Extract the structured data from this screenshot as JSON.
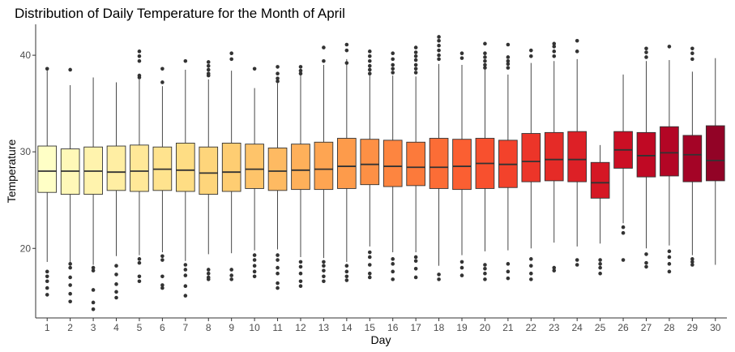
{
  "chart_data": {
    "type": "boxplot",
    "title": "Distribution of Daily Temperature for the Month of April",
    "xlabel": "Day",
    "ylabel": "Temperature",
    "ylim": [
      12.8,
      43.2
    ],
    "y_ticks": [
      20,
      30,
      40
    ],
    "grid": false,
    "legend": "none",
    "categories": [
      "1",
      "2",
      "3",
      "4",
      "5",
      "6",
      "7",
      "8",
      "9",
      "10",
      "11",
      "12",
      "13",
      "14",
      "15",
      "16",
      "17",
      "18",
      "19",
      "20",
      "21",
      "22",
      "23",
      "24",
      "25",
      "26",
      "27",
      "28",
      "29",
      "30"
    ],
    "boxes": [
      {
        "day": "1",
        "whisker_low": 18.6,
        "q1": 25.8,
        "median": 28.0,
        "q3": 30.6,
        "whisker_high": 38.4,
        "outliers": [
          38.6,
          17.6,
          17.1,
          16.6,
          15.9,
          15.2
        ],
        "color": "#ffffc6"
      },
      {
        "day": "2",
        "whisker_low": 18.6,
        "q1": 25.6,
        "median": 28.0,
        "q3": 30.3,
        "whisker_high": 36.9,
        "outliers": [
          38.5,
          18.4,
          18.0,
          17.0,
          16.2,
          15.3,
          14.5
        ],
        "color": "#fff8b8"
      },
      {
        "day": "3",
        "whisker_low": 18.3,
        "q1": 25.6,
        "median": 28.0,
        "q3": 30.5,
        "whisker_high": 37.7,
        "outliers": [
          18.0,
          17.7,
          15.7,
          14.4,
          13.7
        ],
        "color": "#fff3ad"
      },
      {
        "day": "4",
        "whisker_low": 19.2,
        "q1": 26.0,
        "median": 27.9,
        "q3": 30.6,
        "whisker_high": 37.2,
        "outliers": [
          18.2,
          17.3,
          16.3,
          15.5,
          14.9
        ],
        "color": "#ffeea3"
      },
      {
        "day": "5",
        "whisker_low": 19.3,
        "q1": 25.9,
        "median": 28.0,
        "q3": 30.7,
        "whisker_high": 37.5,
        "outliers": [
          40.4,
          39.9,
          39.4,
          37.9,
          37.7,
          18.9,
          18.5,
          17.1,
          16.6
        ],
        "color": "#ffe898"
      },
      {
        "day": "6",
        "whisker_low": 19.6,
        "q1": 26.0,
        "median": 28.2,
        "q3": 30.5,
        "whisker_high": 36.8,
        "outliers": [
          38.6,
          37.2,
          19.2,
          18.8,
          17.1,
          16.2,
          15.9
        ],
        "color": "#ffe38e"
      },
      {
        "day": "7",
        "whisker_low": 18.7,
        "q1": 25.9,
        "median": 28.1,
        "q3": 30.9,
        "whisker_high": 38.5,
        "outliers": [
          39.4,
          18.3,
          17.8,
          17.2,
          16.1,
          15.1
        ],
        "color": "#fedd84"
      },
      {
        "day": "8",
        "whisker_low": 19.4,
        "q1": 25.6,
        "median": 27.8,
        "q3": 30.5,
        "whisker_high": 37.5,
        "outliers": [
          39.3,
          38.9,
          38.5,
          38.1,
          37.9,
          17.8,
          17.4,
          17.0,
          16.8
        ],
        "color": "#fed57b"
      },
      {
        "day": "9",
        "whisker_low": 19.5,
        "q1": 25.9,
        "median": 27.9,
        "q3": 30.9,
        "whisker_high": 38.4,
        "outliers": [
          40.2,
          39.6,
          17.8,
          17.2,
          16.8
        ],
        "color": "#fecd72"
      },
      {
        "day": "10",
        "whisker_low": 19.8,
        "q1": 26.2,
        "median": 28.2,
        "q3": 30.8,
        "whisker_high": 36.6,
        "outliers": [
          38.6,
          19.3,
          18.8,
          18.2,
          17.6,
          17.1
        ],
        "color": "#fec46a"
      },
      {
        "day": "11",
        "whisker_low": 19.9,
        "q1": 26.0,
        "median": 28.0,
        "q3": 30.4,
        "whisker_high": 37.1,
        "outliers": [
          38.8,
          38.1,
          37.6,
          37.3,
          19.3,
          18.8,
          18.0,
          17.4,
          16.4,
          15.9
        ],
        "color": "#feba62"
      },
      {
        "day": "12",
        "whisker_low": 19.1,
        "q1": 26.1,
        "median": 28.1,
        "q3": 30.8,
        "whisker_high": 38.1,
        "outliers": [
          38.8,
          38.4,
          38.1,
          18.6,
          18.1,
          17.4,
          16.6,
          16.1
        ],
        "color": "#feb05a"
      },
      {
        "day": "13",
        "whisker_low": 19.0,
        "q1": 26.1,
        "median": 28.2,
        "q3": 31.0,
        "whisker_high": 39.0,
        "outliers": [
          40.8,
          39.4,
          18.6,
          18.2,
          17.7,
          17.1,
          16.6
        ],
        "color": "#fea552"
      },
      {
        "day": "14",
        "whisker_low": 18.6,
        "q1": 26.2,
        "median": 28.5,
        "q3": 31.4,
        "whisker_high": 39.6,
        "outliers": [
          41.1,
          40.5,
          39.2,
          18.2,
          17.6,
          17.1,
          16.7
        ],
        "color": "#fd9b4b"
      },
      {
        "day": "15",
        "whisker_low": 20.2,
        "q1": 26.6,
        "median": 28.7,
        "q3": 31.3,
        "whisker_high": 37.9,
        "outliers": [
          40.4,
          39.9,
          39.4,
          38.9,
          38.5,
          38.1,
          19.6,
          19.1,
          18.3,
          17.4,
          17.0
        ],
        "color": "#fd9045"
      },
      {
        "day": "16",
        "whisker_low": 19.6,
        "q1": 26.4,
        "median": 28.5,
        "q3": 31.2,
        "whisker_high": 37.9,
        "outliers": [
          40.2,
          39.6,
          39.0,
          38.6,
          38.2,
          18.9,
          18.4,
          17.6,
          16.8
        ],
        "color": "#fd8540"
      },
      {
        "day": "17",
        "whisker_low": 19.6,
        "q1": 26.5,
        "median": 28.4,
        "q3": 31.0,
        "whisker_high": 37.8,
        "outliers": [
          40.8,
          40.3,
          39.9,
          39.5,
          39.0,
          38.6,
          38.2,
          19.1,
          18.7,
          17.9,
          17.0
        ],
        "color": "#fc7a3b"
      },
      {
        "day": "18",
        "whisker_low": 18.2,
        "q1": 26.2,
        "median": 28.4,
        "q3": 31.4,
        "whisker_high": 39.1,
        "outliers": [
          41.9,
          41.5,
          41.0,
          40.5,
          40.0,
          39.6,
          17.3,
          16.8
        ],
        "color": "#fc6d36"
      },
      {
        "day": "19",
        "whisker_low": 19.3,
        "q1": 26.1,
        "median": 28.5,
        "q3": 31.3,
        "whisker_high": 39.0,
        "outliers": [
          40.2,
          39.7,
          18.6,
          18.0,
          17.2
        ],
        "color": "#fb5f32"
      },
      {
        "day": "20",
        "whisker_low": 19.7,
        "q1": 26.2,
        "median": 28.8,
        "q3": 31.4,
        "whisker_high": 38.5,
        "outliers": [
          41.2,
          40.2,
          39.8,
          39.4,
          39.0,
          38.7,
          18.3,
          17.9,
          17.4,
          16.8
        ],
        "color": "#f8502e"
      },
      {
        "day": "21",
        "whisker_low": 19.8,
        "q1": 26.3,
        "median": 28.7,
        "q3": 31.2,
        "whisker_high": 38.0,
        "outliers": [
          41.1,
          39.8,
          39.4,
          39.1,
          38.7,
          18.4,
          17.6,
          16.9
        ],
        "color": "#f3422b"
      },
      {
        "day": "22",
        "whisker_low": 20.0,
        "q1": 26.9,
        "median": 29.0,
        "q3": 31.9,
        "whisker_high": 39.2,
        "outliers": [
          40.5,
          39.9,
          18.9,
          18.2,
          17.4,
          16.8
        ],
        "color": "#ec3529"
      },
      {
        "day": "23",
        "whisker_low": 20.6,
        "q1": 27.0,
        "median": 29.2,
        "q3": 32.0,
        "whisker_high": 39.4,
        "outliers": [
          41.2,
          40.9,
          40.4,
          39.9,
          18.0,
          17.7
        ],
        "color": "#e52b27"
      },
      {
        "day": "24",
        "whisker_low": 20.2,
        "q1": 26.9,
        "median": 29.2,
        "q3": 32.1,
        "whisker_high": 39.6,
        "outliers": [
          41.5,
          40.4,
          18.8,
          18.3
        ],
        "color": "#dd2026"
      },
      {
        "day": "25",
        "whisker_low": 20.5,
        "q1": 25.2,
        "median": 26.8,
        "q3": 28.9,
        "whisker_high": 30.7,
        "outliers": [
          18.8,
          18.4,
          18.0,
          17.4
        ],
        "color": "#d51724"
      },
      {
        "day": "26",
        "whisker_low": 22.6,
        "q1": 28.3,
        "median": 30.2,
        "q3": 32.1,
        "whisker_high": 38.0,
        "outliers": [
          22.2,
          21.6,
          18.8
        ],
        "color": "#cb0f24"
      },
      {
        "day": "27",
        "whisker_low": 20.0,
        "q1": 27.4,
        "median": 29.6,
        "q3": 32.0,
        "whisker_high": 39.4,
        "outliers": [
          40.7,
          40.3,
          39.8,
          19.4,
          18.5,
          18.1
        ],
        "color": "#c00924"
      },
      {
        "day": "28",
        "whisker_low": 20.3,
        "q1": 27.5,
        "median": 29.9,
        "q3": 32.6,
        "whisker_high": 39.5,
        "outliers": [
          40.9,
          19.7,
          19.1,
          18.4,
          17.6
        ],
        "color": "#b30625"
      },
      {
        "day": "29",
        "whisker_low": 19.3,
        "q1": 26.9,
        "median": 29.7,
        "q3": 31.7,
        "whisker_high": 38.3,
        "outliers": [
          40.7,
          40.2,
          39.6,
          18.9,
          18.6,
          18.3
        ],
        "color": "#a40426"
      },
      {
        "day": "30",
        "whisker_low": 18.3,
        "q1": 27.0,
        "median": 29.1,
        "q3": 32.7,
        "whisker_high": 39.7,
        "outliers": [],
        "color": "#920326"
      }
    ]
  }
}
